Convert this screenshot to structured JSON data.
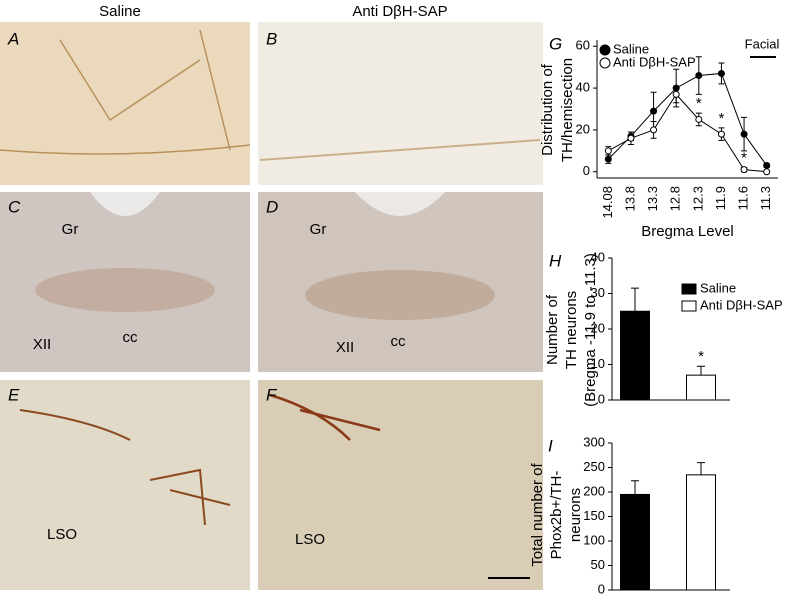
{
  "figure": {
    "column_titles": [
      "Saline",
      "Anti DβH-SAP"
    ],
    "panels": [
      {
        "letter": "A"
      },
      {
        "letter": "B"
      },
      {
        "letter": "C",
        "labels": [
          "Gr",
          "XII",
          "cc"
        ]
      },
      {
        "letter": "D",
        "labels": [
          "Gr",
          "XII",
          "cc"
        ]
      },
      {
        "letter": "E",
        "labels": [
          "LSO"
        ]
      },
      {
        "letter": "F",
        "labels": [
          "LSO"
        ]
      }
    ]
  },
  "chart_data": [
    {
      "type": "line",
      "panel": "G",
      "ylabel": [
        "Distribution of",
        "TH/hemisection"
      ],
      "xlabel": "Bregma Level",
      "categories": [
        "14.08",
        "13.8",
        "13.3",
        "12.8",
        "12.3",
        "11.9",
        "11.6",
        "11.3"
      ],
      "series": [
        {
          "name": "Saline",
          "color": "#000000",
          "marker": "filled",
          "values": [
            6,
            17,
            29,
            40,
            46,
            47,
            18,
            3
          ],
          "errors": [
            2,
            2,
            9,
            9,
            9,
            5,
            8,
            1
          ]
        },
        {
          "name": "Anti DβH-SAP",
          "color": "#ffffff",
          "marker": "open",
          "values": [
            10,
            16,
            20,
            37,
            25,
            18,
            1,
            0
          ],
          "errors": [
            2,
            3,
            4,
            4,
            3,
            3,
            1,
            0.5
          ]
        }
      ],
      "annotations": [
        {
          "text": "*",
          "index": 4
        },
        {
          "text": "*",
          "index": 5
        },
        {
          "text": "*",
          "index": 6
        }
      ],
      "region_label": "Facial",
      "ylim": [
        -3,
        63
      ],
      "yticks": [
        0,
        20,
        40,
        60
      ],
      "legend": "top-left"
    },
    {
      "type": "bar",
      "panel": "H",
      "ylabel": [
        "Number of",
        "TH neurons",
        "(Bregma -11.9 to -11.3)"
      ],
      "series": [
        {
          "name": "Saline",
          "color": "#000000",
          "values": [
            25
          ],
          "errors": [
            6.5
          ]
        },
        {
          "name": "Anti DβH-SAP",
          "color": "#ffffff",
          "values": [
            7
          ],
          "errors": [
            2.5
          ]
        }
      ],
      "annotations": [
        {
          "text": "*",
          "series": 1
        }
      ],
      "ylim": [
        0,
        40
      ],
      "yticks": [
        0,
        10,
        20,
        30,
        40
      ],
      "legend": "top-right"
    },
    {
      "type": "bar",
      "panel": "I",
      "ylabel": [
        "Total number of",
        "Phox2b+/TH-",
        "neurons"
      ],
      "series": [
        {
          "color": "#000000",
          "values": [
            195
          ],
          "errors": [
            28
          ]
        },
        {
          "color": "#ffffff",
          "values": [
            235
          ],
          "errors": [
            25
          ]
        }
      ],
      "ylim": [
        0,
        300
      ],
      "yticks": [
        0,
        50,
        100,
        150,
        200,
        250,
        300
      ]
    }
  ]
}
